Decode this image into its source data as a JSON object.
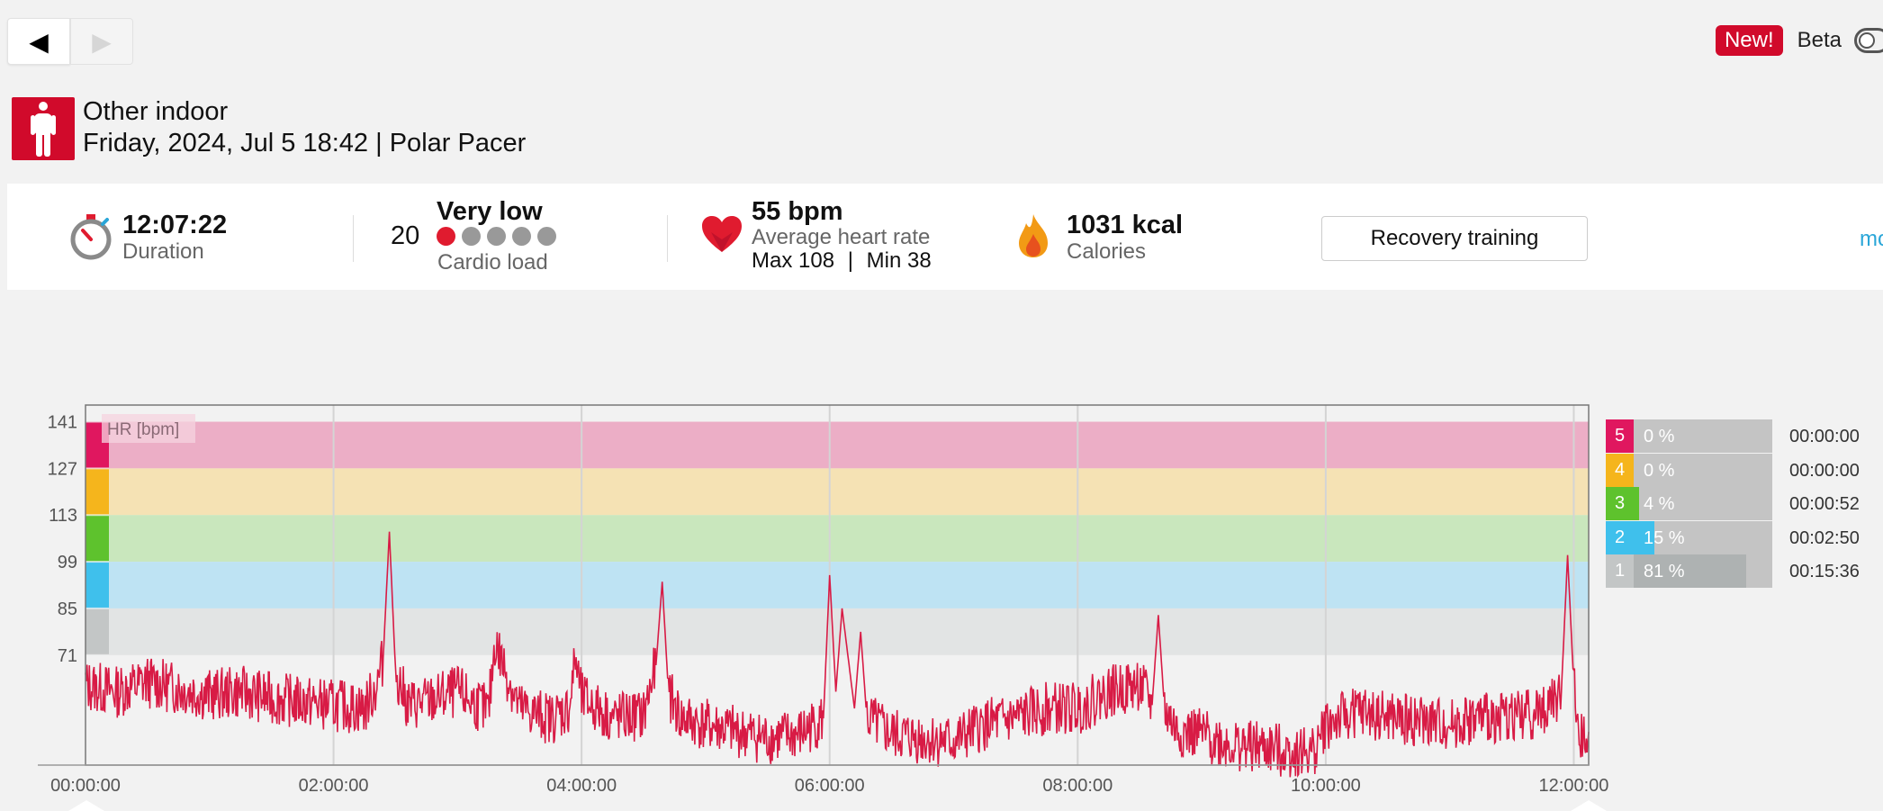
{
  "nav": {
    "back_glyph": "◀",
    "forward_glyph": "▶"
  },
  "beta": {
    "new_label": "New!",
    "beta_label": "Beta",
    "toggle_on": false
  },
  "session": {
    "sport": "Other indoor",
    "datetime": "Friday, 2024, Jul 5 18:42",
    "separator": "|",
    "device": "Polar Pacer",
    "sport_icon": "person-standing-icon"
  },
  "summary": {
    "duration": {
      "value": "12:07:22",
      "label": "Duration",
      "icon": "stopwatch-icon"
    },
    "cardio": {
      "value": "20",
      "level": "Very low",
      "label": "Cardio load",
      "dots_on": 1,
      "dots_total": 5
    },
    "heart": {
      "value": "55 bpm",
      "label": "Average heart rate",
      "max": "Max 108",
      "sep": "|",
      "min": "Min 38",
      "icon": "heart-icon"
    },
    "calories": {
      "value": "1031 kcal",
      "label": "Calories",
      "icon": "flame-icon"
    },
    "benefit_button": "Recovery training",
    "more_link": "more"
  },
  "colors": {
    "brand_red": "#d10a2b",
    "hr_line": "#d81b45",
    "zone5": "#e0175f",
    "zone4": "#f5b51c",
    "zone3": "#5ec22d",
    "zone2": "#3fc0ec",
    "zone1": "#c3c6c6",
    "zone5_band": "#ecaec6",
    "zone4_band": "#f5e2b4",
    "zone3_band": "#c9e7bd",
    "zone2_band": "#bee3f3",
    "zone1_band": "#e2e4e4"
  },
  "chart_data": {
    "type": "line",
    "series_label": "HR [bpm]",
    "x_ticks": [
      "00:00:00",
      "02:00:00",
      "04:00:00",
      "06:00:00",
      "08:00:00",
      "10:00:00",
      "12:00:00"
    ],
    "y_ticks": [
      141,
      127,
      113,
      99,
      85,
      71
    ],
    "x_range_hours": [
      0,
      12.12
    ],
    "y_range": [
      38,
      146
    ],
    "zones": [
      {
        "zone": 5,
        "from": 127,
        "to": 141
      },
      {
        "zone": 4,
        "from": 113,
        "to": 127
      },
      {
        "zone": 3,
        "from": 99,
        "to": 113
      },
      {
        "zone": 2,
        "from": 85,
        "to": 99
      },
      {
        "zone": 1,
        "from": 71,
        "to": 85
      }
    ],
    "hr_samples": {
      "x_hours": [
        0,
        0.25,
        0.5,
        0.75,
        1.0,
        1.25,
        1.5,
        1.75,
        2.0,
        2.25,
        2.35,
        2.4,
        2.45,
        2.5,
        2.6,
        2.75,
        3.0,
        3.25,
        3.3,
        3.5,
        3.75,
        3.9,
        3.95,
        4.0,
        4.25,
        4.5,
        4.6,
        4.65,
        4.7,
        4.8,
        5.0,
        5.25,
        5.5,
        5.75,
        5.95,
        6.0,
        6.05,
        6.1,
        6.2,
        6.25,
        6.3,
        6.5,
        6.75,
        7.0,
        7.25,
        7.5,
        7.75,
        8.0,
        8.25,
        8.5,
        8.6,
        8.65,
        8.7,
        8.8,
        9.0,
        9.25,
        9.5,
        9.75,
        9.9,
        10.0,
        10.25,
        10.5,
        10.75,
        11.0,
        11.25,
        11.5,
        11.75,
        11.9,
        11.95,
        12.0,
        12.05,
        12.12
      ],
      "bpm": [
        62,
        60,
        63,
        61,
        59,
        60,
        58,
        57,
        56,
        55,
        62,
        70,
        108,
        66,
        56,
        57,
        60,
        54,
        75,
        55,
        52,
        55,
        70,
        58,
        52,
        53,
        68,
        93,
        60,
        52,
        50,
        48,
        46,
        47,
        52,
        95,
        60,
        85,
        55,
        78,
        52,
        47,
        46,
        45,
        50,
        52,
        55,
        55,
        60,
        62,
        56,
        83,
        55,
        48,
        47,
        44,
        43,
        42,
        42,
        50,
        54,
        52,
        51,
        50,
        52,
        53,
        54,
        60,
        101,
        62,
        45,
        48
      ]
    }
  },
  "zone_summary": [
    {
      "zone": "5",
      "percent": "0 %",
      "fraction": 0.0,
      "time": "00:00:00"
    },
    {
      "zone": "4",
      "percent": "0 %",
      "fraction": 0.0,
      "time": "00:00:00"
    },
    {
      "zone": "3",
      "percent": "4 %",
      "fraction": 0.04,
      "time": "00:00:52"
    },
    {
      "zone": "2",
      "percent": "15 %",
      "fraction": 0.15,
      "time": "00:02:50"
    },
    {
      "zone": "1",
      "percent": "81 %",
      "fraction": 0.81,
      "time": "00:15:36"
    }
  ]
}
